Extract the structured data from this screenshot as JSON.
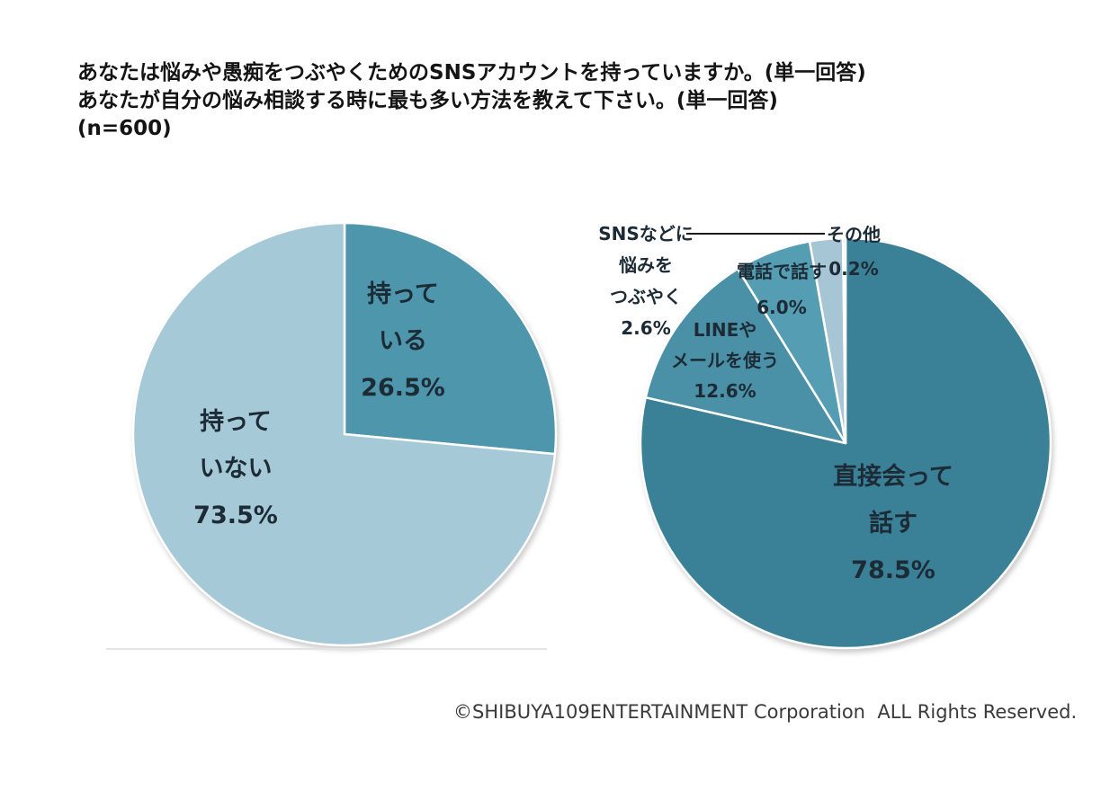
{
  "page": {
    "title_lines": [
      "あなたは悩みや愚痴をつぶやくためのSNSアカウントを持っていますか。(単一回答)",
      "あなたが自分の悩み相談する時に最も多い方法を教えて下さい。(単一回答)",
      "(n=600)"
    ],
    "sample_size": "n=600",
    "copyright": "©SHIBUYA109ENTERTAINMENT Corporation  ALL Rights Reserved."
  },
  "chart_data": [
    {
      "type": "pie",
      "title": "あなたは悩みや愚痴をつぶやくためのSNSアカウントを持っていますか。(単一回答)",
      "n": 600,
      "start_angle_deg": 0,
      "direction": "clockwise",
      "legend_position": "none",
      "slices": [
        {
          "label": "持っている",
          "value_pct": 26.5,
          "color": "#4E96AC",
          "label_lines": [
            "持って",
            "いる",
            "26.5%"
          ]
        },
        {
          "label": "持っていない",
          "value_pct": 73.5,
          "color": "#A6C9D8",
          "label_lines": [
            "持って",
            "いない",
            "73.5%"
          ]
        }
      ]
    },
    {
      "type": "pie",
      "title": "あなたが自分の悩み相談する時に最も多い方法を教えて下さい。(単一回答)",
      "n": 600,
      "start_angle_deg": 0,
      "direction": "clockwise",
      "legend_position": "none",
      "slices": [
        {
          "label": "直接会って話す",
          "value_pct": 78.5,
          "color": "#3A8096",
          "label_lines": [
            "直接会って",
            "話す",
            "78.5%"
          ]
        },
        {
          "label": "LINEやメールを使う",
          "value_pct": 12.6,
          "color": "#4A90A6",
          "label_lines": [
            "LINEや",
            "メールを使う",
            "12.6%"
          ]
        },
        {
          "label": "電話で話す",
          "value_pct": 6.0,
          "color": "#549DB2",
          "label_lines": [
            "電話で話す",
            "6.0%"
          ]
        },
        {
          "label": "SNSなどに悩みをつぶやく",
          "value_pct": 2.6,
          "color": "#A7C6D5",
          "label_lines": [
            "SNSなどに",
            "悩みを",
            "つぶやく",
            "2.6%"
          ]
        },
        {
          "label": "その他",
          "value_pct": 0.2,
          "color": "#BCD4DE",
          "label_lines": [
            "その他",
            "0.2%"
          ]
        }
      ]
    }
  ]
}
